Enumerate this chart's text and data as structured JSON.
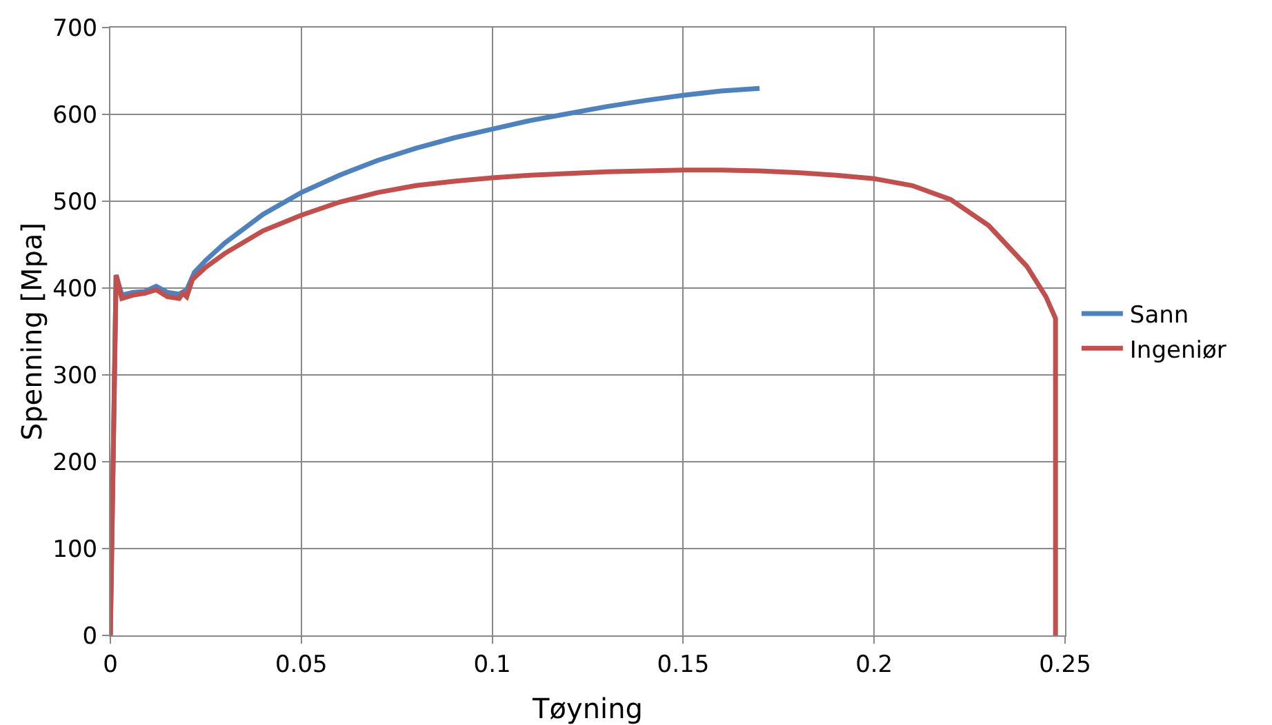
{
  "chart_data": {
    "type": "line",
    "xlabel": "Tøyning",
    "ylabel": "Spenning [Mpa]",
    "xlim": [
      0,
      0.25
    ],
    "xticks": [
      0,
      0.05,
      0.1,
      0.15,
      0.2,
      0.25
    ],
    "ylim": [
      0,
      700
    ],
    "yticks": [
      0,
      100,
      200,
      300,
      400,
      500,
      600,
      700
    ],
    "grid": true,
    "legend": "right",
    "marker": "none",
    "line_style": "solid",
    "series": [
      {
        "name": "Sann",
        "color": "#4f81bd",
        "x": [
          0,
          0.0015,
          0.003,
          0.006,
          0.009,
          0.012,
          0.015,
          0.018,
          0.02,
          0.022,
          0.025,
          0.03,
          0.04,
          0.05,
          0.06,
          0.07,
          0.08,
          0.09,
          0.1,
          0.11,
          0.12,
          0.13,
          0.14,
          0.15,
          0.16,
          0.17
        ],
        "values": [
          0,
          415,
          392,
          395,
          396,
          402,
          395,
          393,
          398,
          418,
          432,
          452,
          485,
          510,
          530,
          547,
          561,
          573,
          583,
          593,
          601,
          609,
          616,
          622,
          627,
          630
        ]
      },
      {
        "name": "Ingeniør",
        "color": "#c0504d",
        "x": [
          0,
          0.0015,
          0.003,
          0.006,
          0.009,
          0.012,
          0.015,
          0.018,
          0.019,
          0.02,
          0.0215,
          0.025,
          0.03,
          0.04,
          0.05,
          0.06,
          0.07,
          0.08,
          0.09,
          0.1,
          0.11,
          0.12,
          0.13,
          0.14,
          0.15,
          0.16,
          0.17,
          0.18,
          0.19,
          0.2,
          0.21,
          0.22,
          0.23,
          0.24,
          0.245,
          0.2475,
          0.2475
        ],
        "values": [
          0,
          415,
          388,
          392,
          394,
          398,
          390,
          388,
          394,
          390,
          410,
          424,
          440,
          466,
          484,
          499,
          510,
          518,
          523,
          527,
          530,
          532,
          534,
          535,
          536,
          536,
          535,
          533,
          530,
          526,
          518,
          502,
          472,
          425,
          390,
          365,
          0
        ]
      }
    ]
  }
}
